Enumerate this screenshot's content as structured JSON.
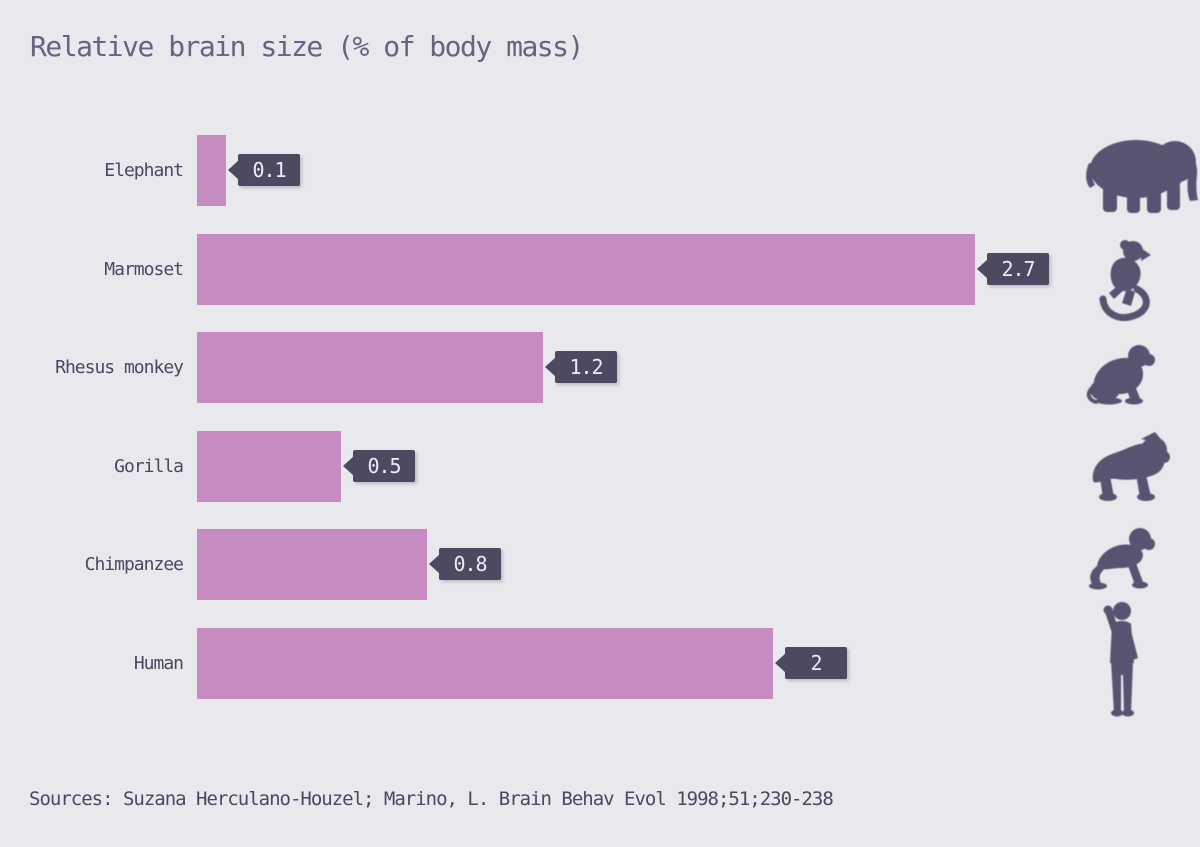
{
  "title": "Relative brain size (% of body mass)",
  "source": "Sources: Suzana Herculano-Houzel; Marino, L. Brain Behav Evol 1998;51;230-238",
  "colors": {
    "background": "#e9e8ed",
    "bar": "#c68cc1",
    "badge": "#4c4a60",
    "badge_text": "#edecf4",
    "text": "#4a4860",
    "title_text": "#666480",
    "icon": "#565470"
  },
  "chart_data": {
    "type": "bar",
    "orientation": "horizontal",
    "title": "Relative brain size (% of body mass)",
    "categories": [
      "Elephant",
      "Marmoset",
      "Rhesus monkey",
      "Gorilla",
      "Chimpanzee",
      "Human"
    ],
    "values": [
      0.1,
      2.7,
      1.2,
      0.5,
      0.8,
      2
    ],
    "value_labels": [
      "0.1",
      "2.7",
      "1.2",
      "0.5",
      "0.8",
      "2"
    ],
    "unit": "% of body mass",
    "xlim": [
      0,
      3.3
    ],
    "grid": false,
    "legend": false,
    "icons": [
      "elephant-icon",
      "marmoset-icon",
      "rhesus-monkey-icon",
      "gorilla-icon",
      "chimpanzee-icon",
      "human-icon"
    ]
  }
}
